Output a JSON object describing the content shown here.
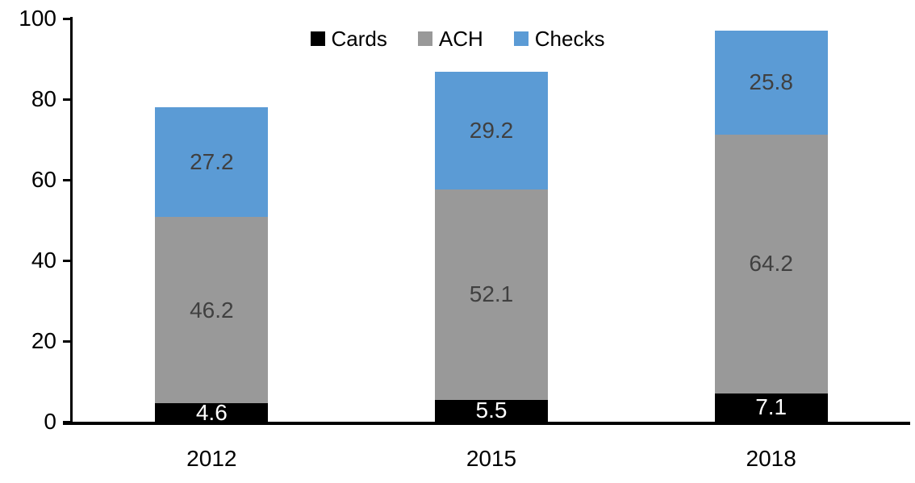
{
  "chart_data": {
    "type": "bar",
    "stacked": true,
    "title": "",
    "xlabel": "",
    "ylabel": "",
    "grid": false,
    "categories": [
      "2012",
      "2015",
      "2018"
    ],
    "series": [
      {
        "name": "Cards",
        "color": "#000000",
        "label_color": "#ffffff",
        "values": [
          4.6,
          5.5,
          7.1
        ]
      },
      {
        "name": "ACH",
        "color": "#999999",
        "label_color": "#404040",
        "values": [
          46.2,
          52.1,
          64.2
        ]
      },
      {
        "name": "Checks",
        "color": "#5b9bd5",
        "label_color": "#404040",
        "values": [
          27.2,
          29.2,
          25.8
        ]
      }
    ],
    "y_axis": {
      "min": 0,
      "max": 100,
      "tick_interval": 20,
      "ticks": [
        0,
        20,
        40,
        60,
        80,
        100
      ]
    },
    "legend": {
      "position": "top-center",
      "items": [
        "Cards",
        "ACH",
        "Checks"
      ]
    },
    "axis_color": "#000000",
    "background_color": "#ffffff"
  }
}
